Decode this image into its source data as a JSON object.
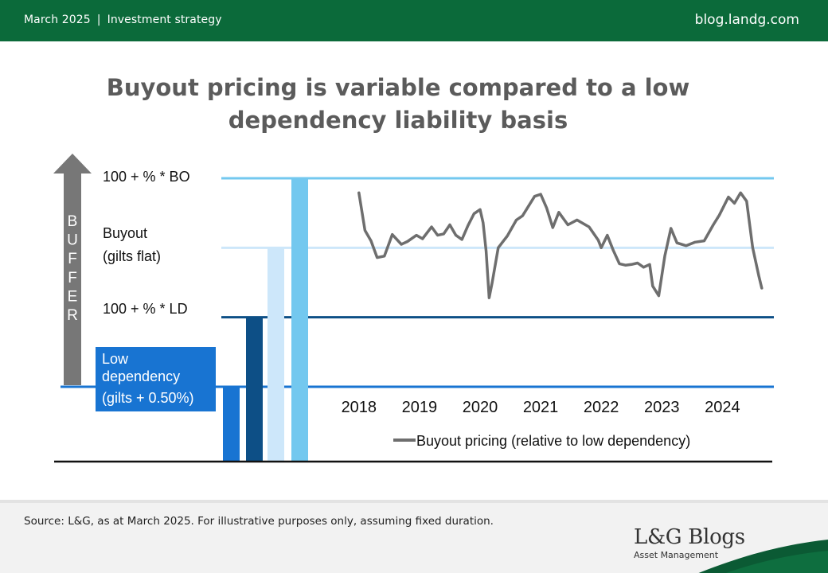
{
  "header": {
    "date": "March 2025",
    "separator": "|",
    "category": "Investment strategy",
    "site": "blog.landg.com"
  },
  "title_line1": "Buyout pricing is variable compared to a low",
  "title_line2": "dependency liability basis",
  "colors": {
    "header_green": "#0b6a3a",
    "low_dependency": "#1874d2",
    "ld_dark": "#0d4f86",
    "buyout_light": "#cde7fa",
    "bo_sky": "#73c8ef",
    "series_grey": "#6e6e6e"
  },
  "chart_data": {
    "type": "line",
    "levels": {
      "low_dependency": 0,
      "ld": 1,
      "buyout": 2,
      "bo": 3
    },
    "level_labels": {
      "bo": "100 + % * BO",
      "buyout_1": "Buyout",
      "buyout_2": "(gilts flat)",
      "ld": "100 + % * LD",
      "low_dep_1": "Low",
      "low_dep_2": "dependency",
      "low_dep_3": "(gilts + 0.50%)"
    },
    "buffer_letters": [
      "B",
      "U",
      "F",
      "F",
      "E",
      "R"
    ],
    "x_ticks": [
      "2018",
      "2019",
      "2020",
      "2021",
      "2022",
      "2023",
      "2024"
    ],
    "x_tick_values": [
      2018,
      2019,
      2020,
      2021,
      2022,
      2023,
      2024
    ],
    "xlim": [
      2017.7,
      2024.85
    ],
    "ylim": [
      0,
      3
    ],
    "legend": "Buyout pricing (relative to low dependency)",
    "series": [
      {
        "name": "Buyout pricing (relative to low dependency)",
        "x": [
          2018.0,
          2018.1,
          2018.2,
          2018.3,
          2018.42,
          2018.55,
          2018.7,
          2018.8,
          2018.95,
          2019.05,
          2019.2,
          2019.3,
          2019.4,
          2019.5,
          2019.6,
          2019.7,
          2019.8,
          2019.9,
          2020.0,
          2020.05,
          2020.1,
          2020.15,
          2020.2,
          2020.3,
          2020.45,
          2020.6,
          2020.7,
          2020.8,
          2020.9,
          2021.0,
          2021.1,
          2021.2,
          2021.3,
          2021.45,
          2021.6,
          2021.8,
          2021.95,
          2022.0,
          2022.1,
          2022.2,
          2022.3,
          2022.4,
          2022.5,
          2022.6,
          2022.7,
          2022.8,
          2022.85,
          2022.95,
          2023.05,
          2023.15,
          2023.25,
          2023.4,
          2023.55,
          2023.7,
          2023.85,
          2023.95,
          2024.1,
          2024.2,
          2024.3,
          2024.4,
          2024.5,
          2024.6,
          2024.65
        ],
        "y": [
          2.79,
          2.25,
          2.1,
          1.86,
          1.88,
          2.19,
          2.05,
          2.09,
          2.18,
          2.13,
          2.3,
          2.18,
          2.2,
          2.33,
          2.18,
          2.12,
          2.32,
          2.49,
          2.55,
          2.36,
          1.95,
          1.28,
          1.5,
          2.0,
          2.17,
          2.4,
          2.46,
          2.6,
          2.74,
          2.77,
          2.57,
          2.29,
          2.51,
          2.33,
          2.4,
          2.3,
          2.11,
          2.0,
          2.18,
          1.96,
          1.77,
          1.75,
          1.76,
          1.78,
          1.72,
          1.76,
          1.45,
          1.31,
          1.88,
          2.28,
          2.07,
          2.03,
          2.08,
          2.1,
          2.33,
          2.47,
          2.73,
          2.64,
          2.79,
          2.67,
          2.0,
          1.6,
          1.42
        ]
      }
    ],
    "bars_order": [
      "low_dependency",
      "ld",
      "buyout",
      "bo"
    ]
  },
  "footer": {
    "source": "Source: L&G, as at March 2025. For illustrative  purposes only, assuming fixed duration.",
    "brand_name": "L&G Blogs",
    "brand_sub": "Asset Management"
  }
}
